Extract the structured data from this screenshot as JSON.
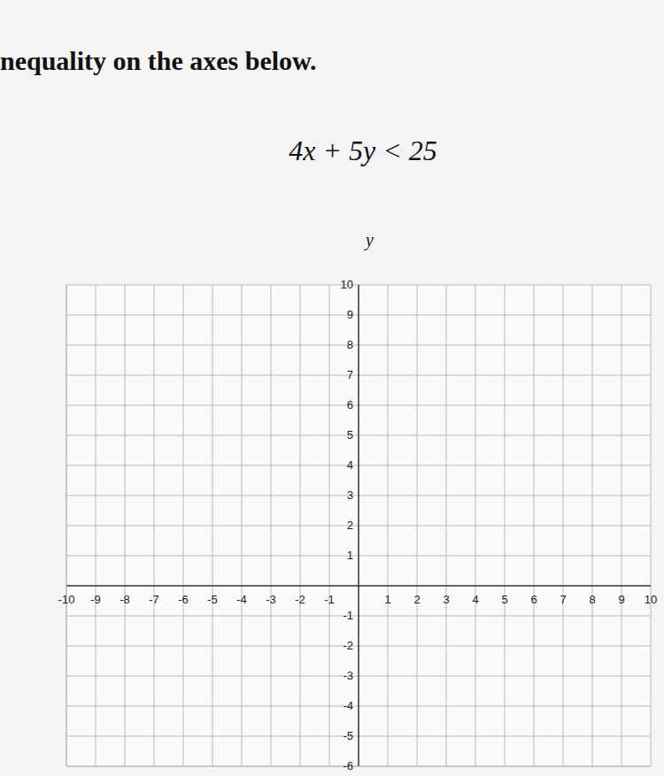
{
  "chart_data": {
    "type": "scatter",
    "title": "nequality on the axes below.",
    "subtitle": "4x + 5y < 25",
    "y_label": "y",
    "xlim": [
      -10,
      10
    ],
    "xticks": [
      -10,
      -9,
      -8,
      -7,
      -6,
      -5,
      -4,
      -3,
      -2,
      -1,
      1,
      2,
      3,
      4,
      5,
      6,
      7,
      8,
      9,
      10
    ],
    "ylim": [
      -6,
      10
    ],
    "yticks": [
      -6,
      -5,
      -4,
      -3,
      -2,
      -1,
      1,
      2,
      3,
      4,
      5,
      6,
      7,
      8,
      9,
      10
    ],
    "grid": true
  }
}
